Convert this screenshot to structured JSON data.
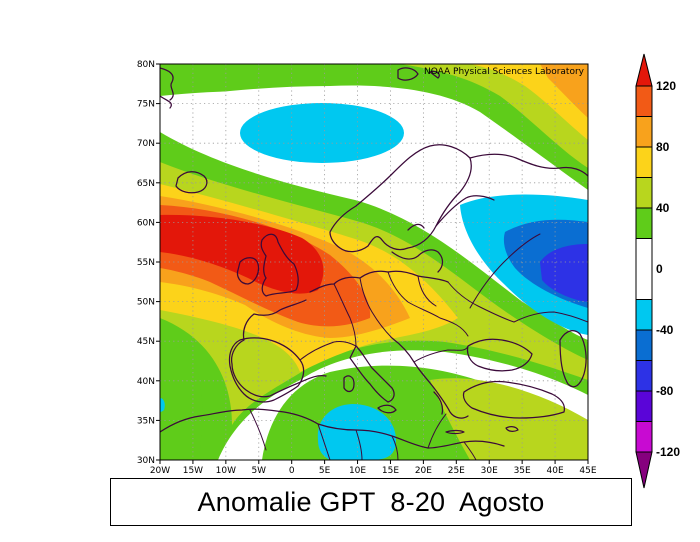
{
  "map": {
    "credit": "NOAA Physical Sciences Laboratory",
    "lon_ticks": [
      "20W",
      "15W",
      "10W",
      "5W",
      "0",
      "5E",
      "10E",
      "15E",
      "20E",
      "25E",
      "30E",
      "35E",
      "40E",
      "45E"
    ],
    "lat_ticks": [
      "30N",
      "35N",
      "40N",
      "45N",
      "50N",
      "55N",
      "60N",
      "65N",
      "70N",
      "75N",
      "80N"
    ],
    "extent": {
      "lon": [
        -20,
        45
      ],
      "lat": [
        30,
        80
      ]
    },
    "field": "geopotential height anomaly",
    "anomaly_centers": [
      {
        "kind": "positive",
        "lon": -12,
        "lat": 57,
        "value": 120
      },
      {
        "kind": "negative",
        "lon": 42,
        "lat": 53,
        "value": -80
      },
      {
        "kind": "negative",
        "lon": 0,
        "lat": 73,
        "value": -40
      },
      {
        "kind": "negative",
        "lon": 10,
        "lat": 33,
        "value": -40
      }
    ]
  },
  "colorbar": {
    "labels": [
      "120",
      "80",
      "40",
      "0",
      "-40",
      "-80",
      "-120"
    ],
    "colors": {
      "c120": "#e3170a",
      "c100": "#f25a16",
      "c80": "#f8a21c",
      "c60": "#fcd31a",
      "c40": "#b8d61e",
      "c20": "#5fcc1a",
      "c0": "#ffffff",
      "m20": "#00c8f0",
      "m40": "#0a6ed2",
      "m60": "#2d32e6",
      "m80": "#5a05d8",
      "m100": "#c80ad2",
      "m120": "#86007e"
    }
  },
  "caption": {
    "text": "Anomalie GPT  8-20  Agosto"
  }
}
